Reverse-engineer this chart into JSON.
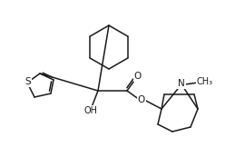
{
  "bg_color": "#ffffff",
  "line_color": "#1a1a1a",
  "line_width": 1.1,
  "font_size": 7.0,
  "figsize": [
    2.59,
    1.73
  ],
  "dpi": 100,
  "xlim": [
    0,
    259
  ],
  "ylim": [
    0,
    173
  ]
}
